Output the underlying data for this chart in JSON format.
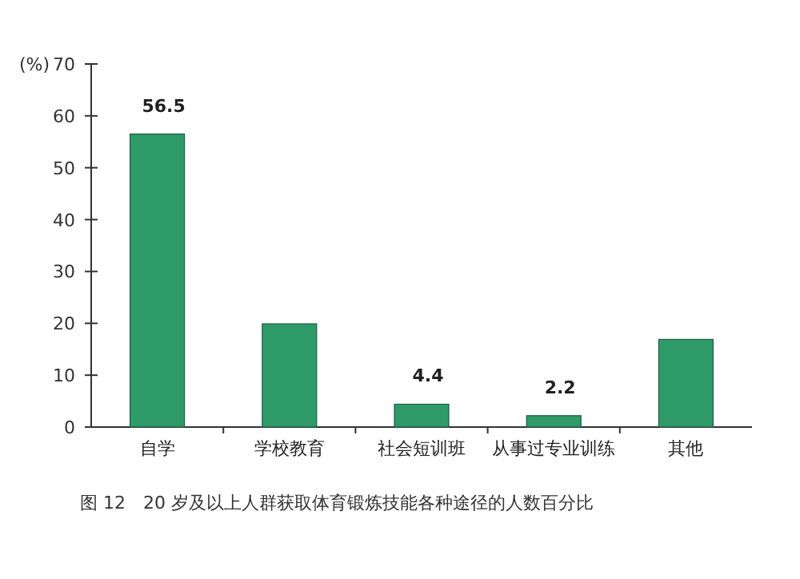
{
  "chart_data": {
    "type": "bar",
    "ylabel": "(%)",
    "categories": [
      "自学",
      "学校教育",
      "社会短训班",
      "从事过专业训练",
      "其他"
    ],
    "values": [
      56.5,
      19.9,
      4.4,
      2.2,
      16.9
    ],
    "value_labels": [
      "56.5",
      null,
      "4.4",
      "2.2",
      null
    ],
    "color": "#2e9a68",
    "ylim": [
      0,
      70
    ],
    "yticks": [
      0,
      10,
      20,
      30,
      40,
      50,
      60,
      70
    ],
    "grid": false,
    "annotations": [
      "图 12　20 岁及以上人群获取体育锻炼技能各种途径的人数百分比"
    ]
  }
}
